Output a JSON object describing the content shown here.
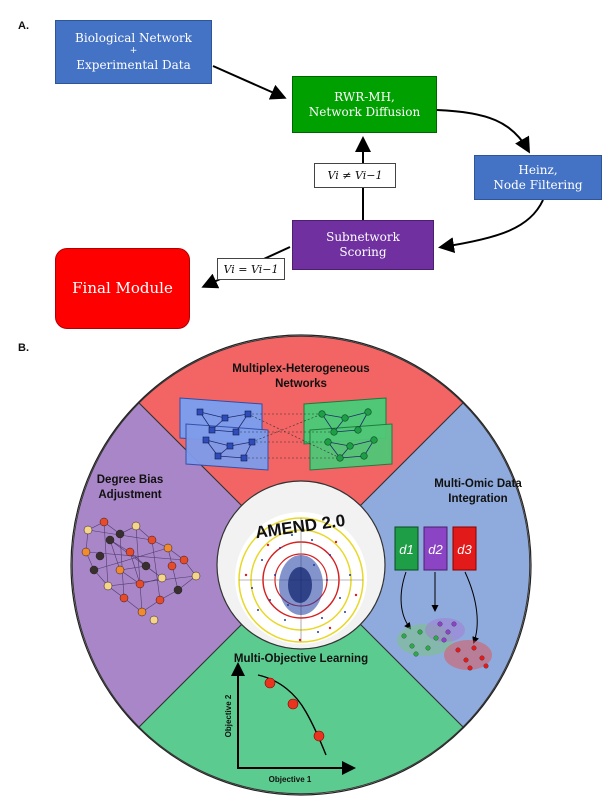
{
  "panelA": {
    "label": "A.",
    "bio_network": {
      "line1": "Biological Network",
      "line2": "+",
      "line3": "Experimental Data"
    },
    "rwr": {
      "line1": "RWR-MH,",
      "line2": "Network Diffusion"
    },
    "heinz": {
      "line1": "Heinz,",
      "line2": "Node Filtering"
    },
    "subnetwork": {
      "line1": "Subnetwork",
      "line2": "Scoring"
    },
    "final_module": "Final Module",
    "cond_not_equal": "Vi ≠ Vi−1",
    "cond_equal": "Vi = Vi−1"
  },
  "panelB": {
    "label": "B.",
    "center_title": "AMEND 2.0",
    "sector_top": {
      "line1": "Multiplex-Heterogeneous",
      "line2": "Networks"
    },
    "sector_left": {
      "line1": "Degree Bias",
      "line2": "Adjustment"
    },
    "sector_right": {
      "line1": "Multi-Omic Data",
      "line2": "Integration"
    },
    "sector_bottom": "Multi-Objective Learning",
    "d1": "d1",
    "d2": "d2",
    "d3": "d3",
    "obj_x": "Objective 1",
    "obj_y": "Objective 2"
  },
  "colors": {
    "blue_box": "#4472C4",
    "green_box": "#00A000",
    "purple_box": "#7030A0",
    "red_box": "#FF0000",
    "sector_red": "#F36464",
    "sector_purple": "#A886C7",
    "sector_blue": "#8FAADC",
    "sector_green": "#5CCB8F"
  }
}
